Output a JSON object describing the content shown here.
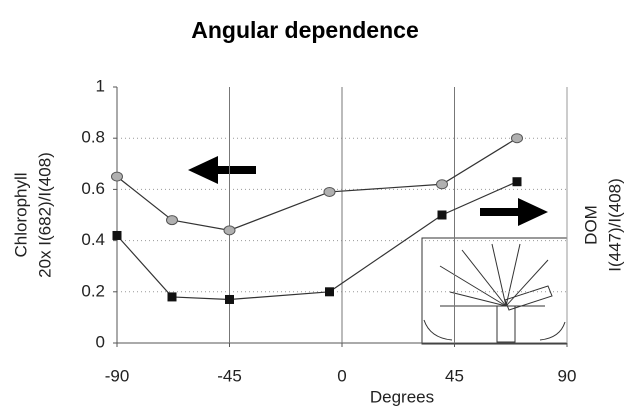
{
  "chart_data": {
    "type": "line",
    "title": "Angular dependence",
    "x_label": "Degrees",
    "y_label": [
      "Chlorophyll",
      "20x I(682)/I(408)"
    ],
    "y2_label": [
      "DOM",
      "I(447)/I(408)"
    ],
    "x": [
      -90,
      -68,
      -45,
      -5,
      40,
      70
    ],
    "series": [
      {
        "name": "Chlorophyll",
        "color": "#b0b0b0",
        "marker": "circle",
        "values": [
          0.65,
          0.48,
          0.44,
          0.59,
          0.62,
          0.8
        ]
      },
      {
        "name": "DOM",
        "color": "#111111",
        "marker": "square",
        "values": [
          0.42,
          0.18,
          0.17,
          0.2,
          0.5,
          0.63
        ]
      }
    ],
    "xlim": [
      -90,
      90
    ],
    "xticks": [
      -90,
      -45,
      0,
      45,
      90
    ],
    "ylim": [
      0,
      1
    ],
    "yticks": [
      0,
      0.2,
      0.4,
      0.6,
      0.8,
      1
    ],
    "grid": true
  }
}
